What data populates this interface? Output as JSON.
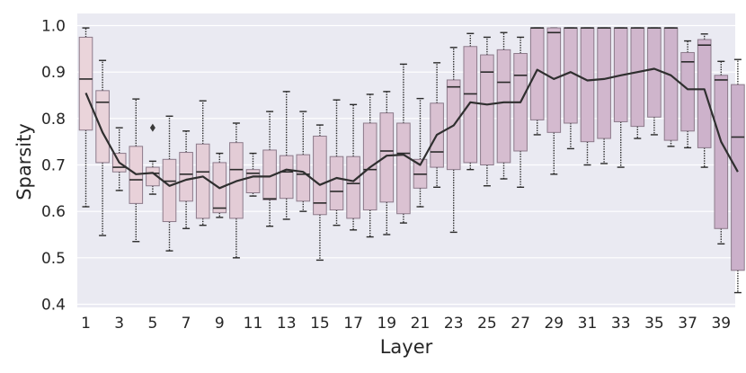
{
  "chart_data": {
    "type": "box",
    "xlabel": "Layer",
    "ylabel": "Sparsity",
    "ylim": [
      0.4,
      1.02
    ],
    "yticks": [
      0.4,
      0.5,
      0.6,
      0.7,
      0.8,
      0.9,
      1.0
    ],
    "ytick_labels": [
      "0.4",
      "0.5",
      "0.6",
      "0.7",
      "0.8",
      "0.9",
      "1.0"
    ],
    "xticks": [
      1,
      3,
      5,
      7,
      9,
      11,
      13,
      15,
      17,
      19,
      21,
      23,
      25,
      27,
      29,
      31,
      33,
      35,
      37,
      39
    ],
    "xtick_labels": [
      "1",
      "3",
      "5",
      "7",
      "9",
      "11",
      "13",
      "15",
      "17",
      "19",
      "21",
      "23",
      "25",
      "27",
      "29",
      "31",
      "33",
      "35",
      "37",
      "39"
    ],
    "grid": true,
    "colors": {
      "background": "#eaeaf2",
      "grid": "#ffffff",
      "box_start": "#ead4da",
      "box_end": "#cbb0ca",
      "edge": "#8c7a8a",
      "whisker": "#2a2a2a",
      "mean_line": "#2f2f2f"
    },
    "layers": [
      1,
      2,
      3,
      4,
      5,
      6,
      7,
      8,
      9,
      10,
      11,
      12,
      13,
      14,
      15,
      16,
      17,
      18,
      19,
      20,
      21,
      22,
      23,
      24,
      25,
      26,
      27,
      28,
      29,
      30,
      31,
      32,
      33,
      34,
      35,
      36,
      37,
      38,
      39,
      40
    ],
    "boxes": [
      {
        "layer": 1,
        "whislo": 0.61,
        "q1": 0.775,
        "med": 0.885,
        "q3": 0.975,
        "whishi": 0.995
      },
      {
        "layer": 2,
        "whislo": 0.548,
        "q1": 0.705,
        "med": 0.835,
        "q3": 0.86,
        "whishi": 0.925
      },
      {
        "layer": 3,
        "whislo": 0.645,
        "q1": 0.685,
        "med": 0.695,
        "q3": 0.725,
        "whishi": 0.78
      },
      {
        "layer": 4,
        "whislo": 0.535,
        "q1": 0.617,
        "med": 0.668,
        "q3": 0.74,
        "whishi": 0.842
      },
      {
        "layer": 5,
        "whislo": 0.637,
        "q1": 0.655,
        "med": 0.682,
        "q3": 0.695,
        "whishi": 0.708,
        "fliers": [
          0.78
        ]
      },
      {
        "layer": 6,
        "whislo": 0.515,
        "q1": 0.578,
        "med": 0.665,
        "q3": 0.712,
        "whishi": 0.805
      },
      {
        "layer": 7,
        "whislo": 0.563,
        "q1": 0.622,
        "med": 0.68,
        "q3": 0.727,
        "whishi": 0.773
      },
      {
        "layer": 8,
        "whislo": 0.57,
        "q1": 0.585,
        "med": 0.685,
        "q3": 0.745,
        "whishi": 0.838
      },
      {
        "layer": 9,
        "whislo": 0.587,
        "q1": 0.597,
        "med": 0.607,
        "q3": 0.705,
        "whishi": 0.725
      },
      {
        "layer": 10,
        "whislo": 0.5,
        "q1": 0.585,
        "med": 0.69,
        "q3": 0.748,
        "whishi": 0.79
      },
      {
        "layer": 11,
        "whislo": 0.633,
        "q1": 0.64,
        "med": 0.682,
        "q3": 0.69,
        "whishi": 0.725
      },
      {
        "layer": 12,
        "whislo": 0.568,
        "q1": 0.625,
        "med": 0.627,
        "q3": 0.732,
        "whishi": 0.815
      },
      {
        "layer": 13,
        "whislo": 0.583,
        "q1": 0.628,
        "med": 0.685,
        "q3": 0.72,
        "whishi": 0.858
      },
      {
        "layer": 14,
        "whislo": 0.6,
        "q1": 0.622,
        "med": 0.68,
        "q3": 0.722,
        "whishi": 0.815
      },
      {
        "layer": 15,
        "whislo": 0.495,
        "q1": 0.593,
        "med": 0.618,
        "q3": 0.762,
        "whishi": 0.786
      },
      {
        "layer": 16,
        "whislo": 0.57,
        "q1": 0.603,
        "med": 0.643,
        "q3": 0.718,
        "whishi": 0.84
      },
      {
        "layer": 17,
        "whislo": 0.56,
        "q1": 0.585,
        "med": 0.66,
        "q3": 0.718,
        "whishi": 0.83
      },
      {
        "layer": 18,
        "whislo": 0.545,
        "q1": 0.603,
        "med": 0.69,
        "q3": 0.79,
        "whishi": 0.852
      },
      {
        "layer": 19,
        "whislo": 0.55,
        "q1": 0.62,
        "med": 0.73,
        "q3": 0.812,
        "whishi": 0.858
      },
      {
        "layer": 20,
        "whislo": 0.575,
        "q1": 0.595,
        "med": 0.725,
        "q3": 0.79,
        "whishi": 0.917
      },
      {
        "layer": 21,
        "whislo": 0.61,
        "q1": 0.65,
        "med": 0.68,
        "q3": 0.712,
        "whishi": 0.843
      },
      {
        "layer": 22,
        "whislo": 0.652,
        "q1": 0.695,
        "med": 0.728,
        "q3": 0.833,
        "whishi": 0.92
      },
      {
        "layer": 23,
        "whislo": 0.555,
        "q1": 0.69,
        "med": 0.868,
        "q3": 0.883,
        "whishi": 0.953
      },
      {
        "layer": 24,
        "whislo": 0.69,
        "q1": 0.705,
        "med": 0.853,
        "q3": 0.955,
        "whishi": 0.983
      },
      {
        "layer": 25,
        "whislo": 0.655,
        "q1": 0.7,
        "med": 0.9,
        "q3": 0.937,
        "whishi": 0.975
      },
      {
        "layer": 26,
        "whislo": 0.67,
        "q1": 0.705,
        "med": 0.878,
        "q3": 0.948,
        "whishi": 0.985
      },
      {
        "layer": 27,
        "whislo": 0.652,
        "q1": 0.73,
        "med": 0.893,
        "q3": 0.94,
        "whishi": 0.975
      },
      {
        "layer": 28,
        "whislo": 0.765,
        "q1": 0.797,
        "med": 0.995,
        "q3": 0.995,
        "whishi": 0.995
      },
      {
        "layer": 29,
        "whislo": 0.68,
        "q1": 0.77,
        "med": 0.985,
        "q3": 0.995,
        "whishi": 0.995
      },
      {
        "layer": 30,
        "whislo": 0.735,
        "q1": 0.79,
        "med": 0.995,
        "q3": 0.995,
        "whishi": 0.995
      },
      {
        "layer": 31,
        "whislo": 0.7,
        "q1": 0.75,
        "med": 0.995,
        "q3": 0.995,
        "whishi": 0.995
      },
      {
        "layer": 32,
        "whislo": 0.703,
        "q1": 0.757,
        "med": 0.995,
        "q3": 0.995,
        "whishi": 0.995
      },
      {
        "layer": 33,
        "whislo": 0.695,
        "q1": 0.793,
        "med": 0.995,
        "q3": 0.995,
        "whishi": 0.995
      },
      {
        "layer": 34,
        "whislo": 0.757,
        "q1": 0.783,
        "med": 0.995,
        "q3": 0.995,
        "whishi": 0.995
      },
      {
        "layer": 35,
        "whislo": 0.765,
        "q1": 0.803,
        "med": 0.995,
        "q3": 0.995,
        "whishi": 0.995
      },
      {
        "layer": 36,
        "whislo": 0.74,
        "q1": 0.753,
        "med": 0.995,
        "q3": 0.995,
        "whishi": 0.995
      },
      {
        "layer": 37,
        "whislo": 0.737,
        "q1": 0.773,
        "med": 0.922,
        "q3": 0.942,
        "whishi": 0.967
      },
      {
        "layer": 38,
        "whislo": 0.695,
        "q1": 0.737,
        "med": 0.958,
        "q3": 0.97,
        "whishi": 0.982
      },
      {
        "layer": 39,
        "whislo": 0.53,
        "q1": 0.563,
        "med": 0.883,
        "q3": 0.893,
        "whishi": 0.923
      },
      {
        "layer": 40,
        "whislo": 0.425,
        "q1": 0.473,
        "med": 0.76,
        "q3": 0.873,
        "whishi": 0.927
      }
    ],
    "mean_line": [
      0.855,
      0.77,
      0.705,
      0.68,
      0.683,
      0.655,
      0.668,
      0.675,
      0.65,
      0.665,
      0.675,
      0.675,
      0.69,
      0.685,
      0.657,
      0.672,
      0.665,
      0.695,
      0.72,
      0.722,
      0.7,
      0.765,
      0.785,
      0.835,
      0.83,
      0.835,
      0.835,
      0.905,
      0.885,
      0.9,
      0.882,
      0.885,
      0.893,
      0.9,
      0.907,
      0.893,
      0.863,
      0.863,
      0.75,
      0.685
    ]
  }
}
